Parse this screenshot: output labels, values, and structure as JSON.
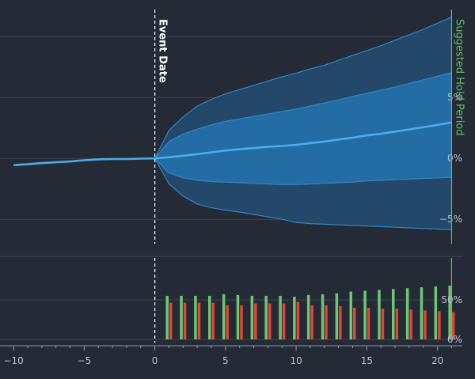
{
  "chart_data": [
    {
      "type": "area",
      "panel": "returns",
      "title": "",
      "xlabel": "",
      "ylabel": "",
      "ylim": [
        -7,
        13
      ],
      "yticks": [
        -5,
        0,
        5
      ],
      "ytick_labels": [
        "−5%",
        "0%",
        "5%"
      ],
      "grid": true,
      "colors": {
        "line": "#4aaee8",
        "inner_band": "#2479b8",
        "outer_band": "#234b6f",
        "band_edge": "#2f86c6"
      },
      "event_marker": {
        "x": 0,
        "label": "Event Date",
        "color": "#ffffff"
      },
      "hold_period_marker": {
        "x": 21,
        "label": "Suggested Hold Period",
        "color": "#5bbf6a"
      },
      "x": [
        -10,
        -9,
        -8,
        -7,
        -6,
        -5,
        -4,
        -3,
        -2,
        -1,
        0,
        1,
        2,
        3,
        4,
        5,
        6,
        7,
        8,
        9,
        10,
        11,
        12,
        13,
        14,
        15,
        16,
        17,
        18,
        19,
        20,
        21
      ],
      "series": [
        {
          "role": "mean",
          "values": [
            -0.55,
            -0.48,
            -0.38,
            -0.32,
            -0.25,
            -0.15,
            -0.08,
            -0.05,
            -0.05,
            -0.02,
            0.0,
            0.1,
            0.22,
            0.35,
            0.5,
            0.65,
            0.75,
            0.85,
            0.95,
            1.02,
            1.12,
            1.25,
            1.38,
            1.55,
            1.7,
            1.88,
            2.02,
            2.2,
            2.38,
            2.55,
            2.75,
            2.95
          ]
        },
        {
          "role": "inner_upper",
          "values": [
            null,
            null,
            null,
            null,
            null,
            null,
            null,
            null,
            null,
            null,
            0.0,
            1.4,
            2.0,
            2.4,
            2.75,
            3.05,
            3.25,
            3.45,
            3.65,
            3.85,
            4.05,
            4.3,
            4.55,
            4.8,
            5.1,
            5.35,
            5.6,
            5.85,
            6.15,
            6.45,
            6.75,
            7.05
          ]
        },
        {
          "role": "inner_lower",
          "values": [
            null,
            null,
            null,
            null,
            null,
            null,
            null,
            null,
            null,
            null,
            0.0,
            -1.2,
            -1.6,
            -1.8,
            -1.9,
            -1.95,
            -2.0,
            -2.05,
            -2.1,
            -2.15,
            -2.15,
            -2.1,
            -2.05,
            -2.0,
            -1.95,
            -1.85,
            -1.8,
            -1.75,
            -1.7,
            -1.65,
            -1.6,
            -1.55
          ]
        },
        {
          "role": "outer_upper",
          "values": [
            null,
            null,
            null,
            null,
            null,
            null,
            null,
            null,
            null,
            null,
            0.0,
            2.3,
            3.4,
            4.3,
            4.85,
            5.3,
            5.65,
            6.0,
            6.35,
            6.7,
            7.0,
            7.35,
            7.65,
            8.05,
            8.45,
            8.85,
            9.25,
            9.7,
            10.15,
            10.6,
            11.1,
            11.6
          ]
        },
        {
          "role": "outer_lower",
          "values": [
            null,
            null,
            null,
            null,
            null,
            null,
            null,
            null,
            null,
            null,
            0.0,
            -2.1,
            -3.1,
            -3.75,
            -4.05,
            -4.25,
            -4.4,
            -4.6,
            -4.8,
            -5.0,
            -5.25,
            -5.35,
            -5.4,
            -5.45,
            -5.5,
            -5.55,
            -5.6,
            -5.65,
            -5.7,
            -5.75,
            -5.8,
            -5.85
          ]
        }
      ]
    },
    {
      "type": "bar",
      "panel": "hit_rate",
      "title": "",
      "xlabel": "",
      "ylabel": "",
      "ylim": [
        0,
        100
      ],
      "yticks": [
        0,
        50
      ],
      "ytick_labels": [
        "0%",
        "50%"
      ],
      "grid": true,
      "colors": {
        "positive": "#6cc76f",
        "negative": "#e0463c"
      },
      "x": [
        1,
        2,
        3,
        4,
        5,
        6,
        7,
        8,
        9,
        10,
        11,
        12,
        13,
        14,
        15,
        16,
        17,
        18,
        19,
        20,
        21
      ],
      "series": [
        {
          "role": "positive",
          "values": [
            51,
            51,
            51,
            51,
            53,
            52,
            51,
            51,
            51,
            50,
            52,
            53,
            54,
            56,
            57,
            58,
            59,
            60,
            61,
            62,
            63
          ]
        },
        {
          "role": "negative",
          "values": [
            43,
            43,
            43,
            43,
            40,
            40,
            42,
            42,
            42,
            44,
            40,
            40,
            39,
            37,
            37,
            36,
            36,
            35,
            34,
            33,
            32
          ]
        }
      ]
    }
  ],
  "x_axis": {
    "range": [
      -10.4,
      21.2
    ],
    "ticks": [
      -10,
      -5,
      0,
      5,
      10,
      15,
      20
    ],
    "tick_labels": [
      "−10",
      "−5",
      "0",
      "5",
      "10",
      "15",
      "20"
    ]
  }
}
